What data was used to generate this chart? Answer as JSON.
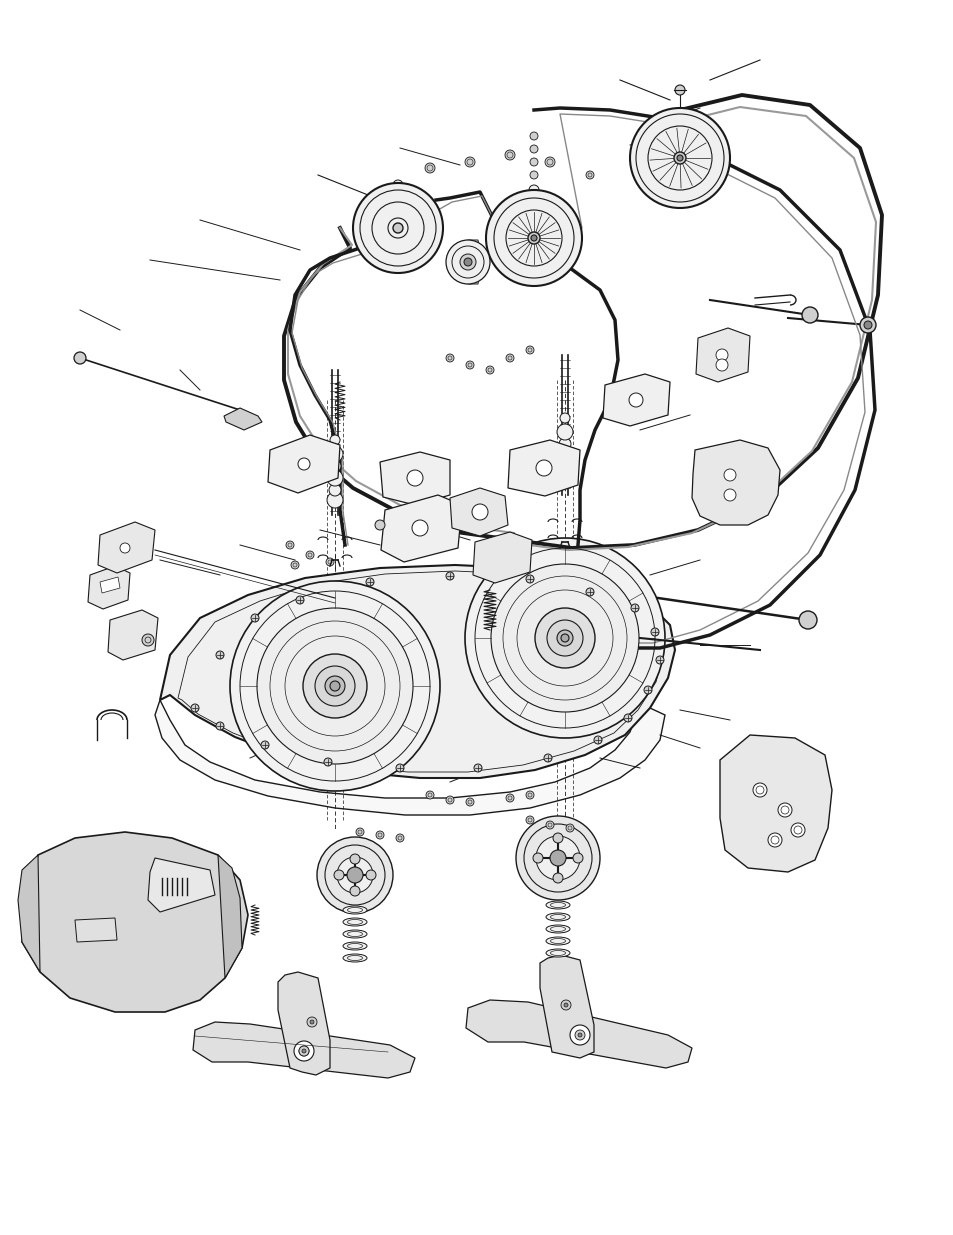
{
  "fig_width": 9.54,
  "fig_height": 12.35,
  "dpi": 100,
  "bg_color": "#ffffff",
  "lc": "#1a1a1a",
  "gray1": "#e8e8e8",
  "gray2": "#d0d0d0",
  "gray3": "#f0f0f0",
  "gray4": "#cccccc",
  "gray5": "#b8b8b8",
  "gray_chute": "#d4d4d4"
}
